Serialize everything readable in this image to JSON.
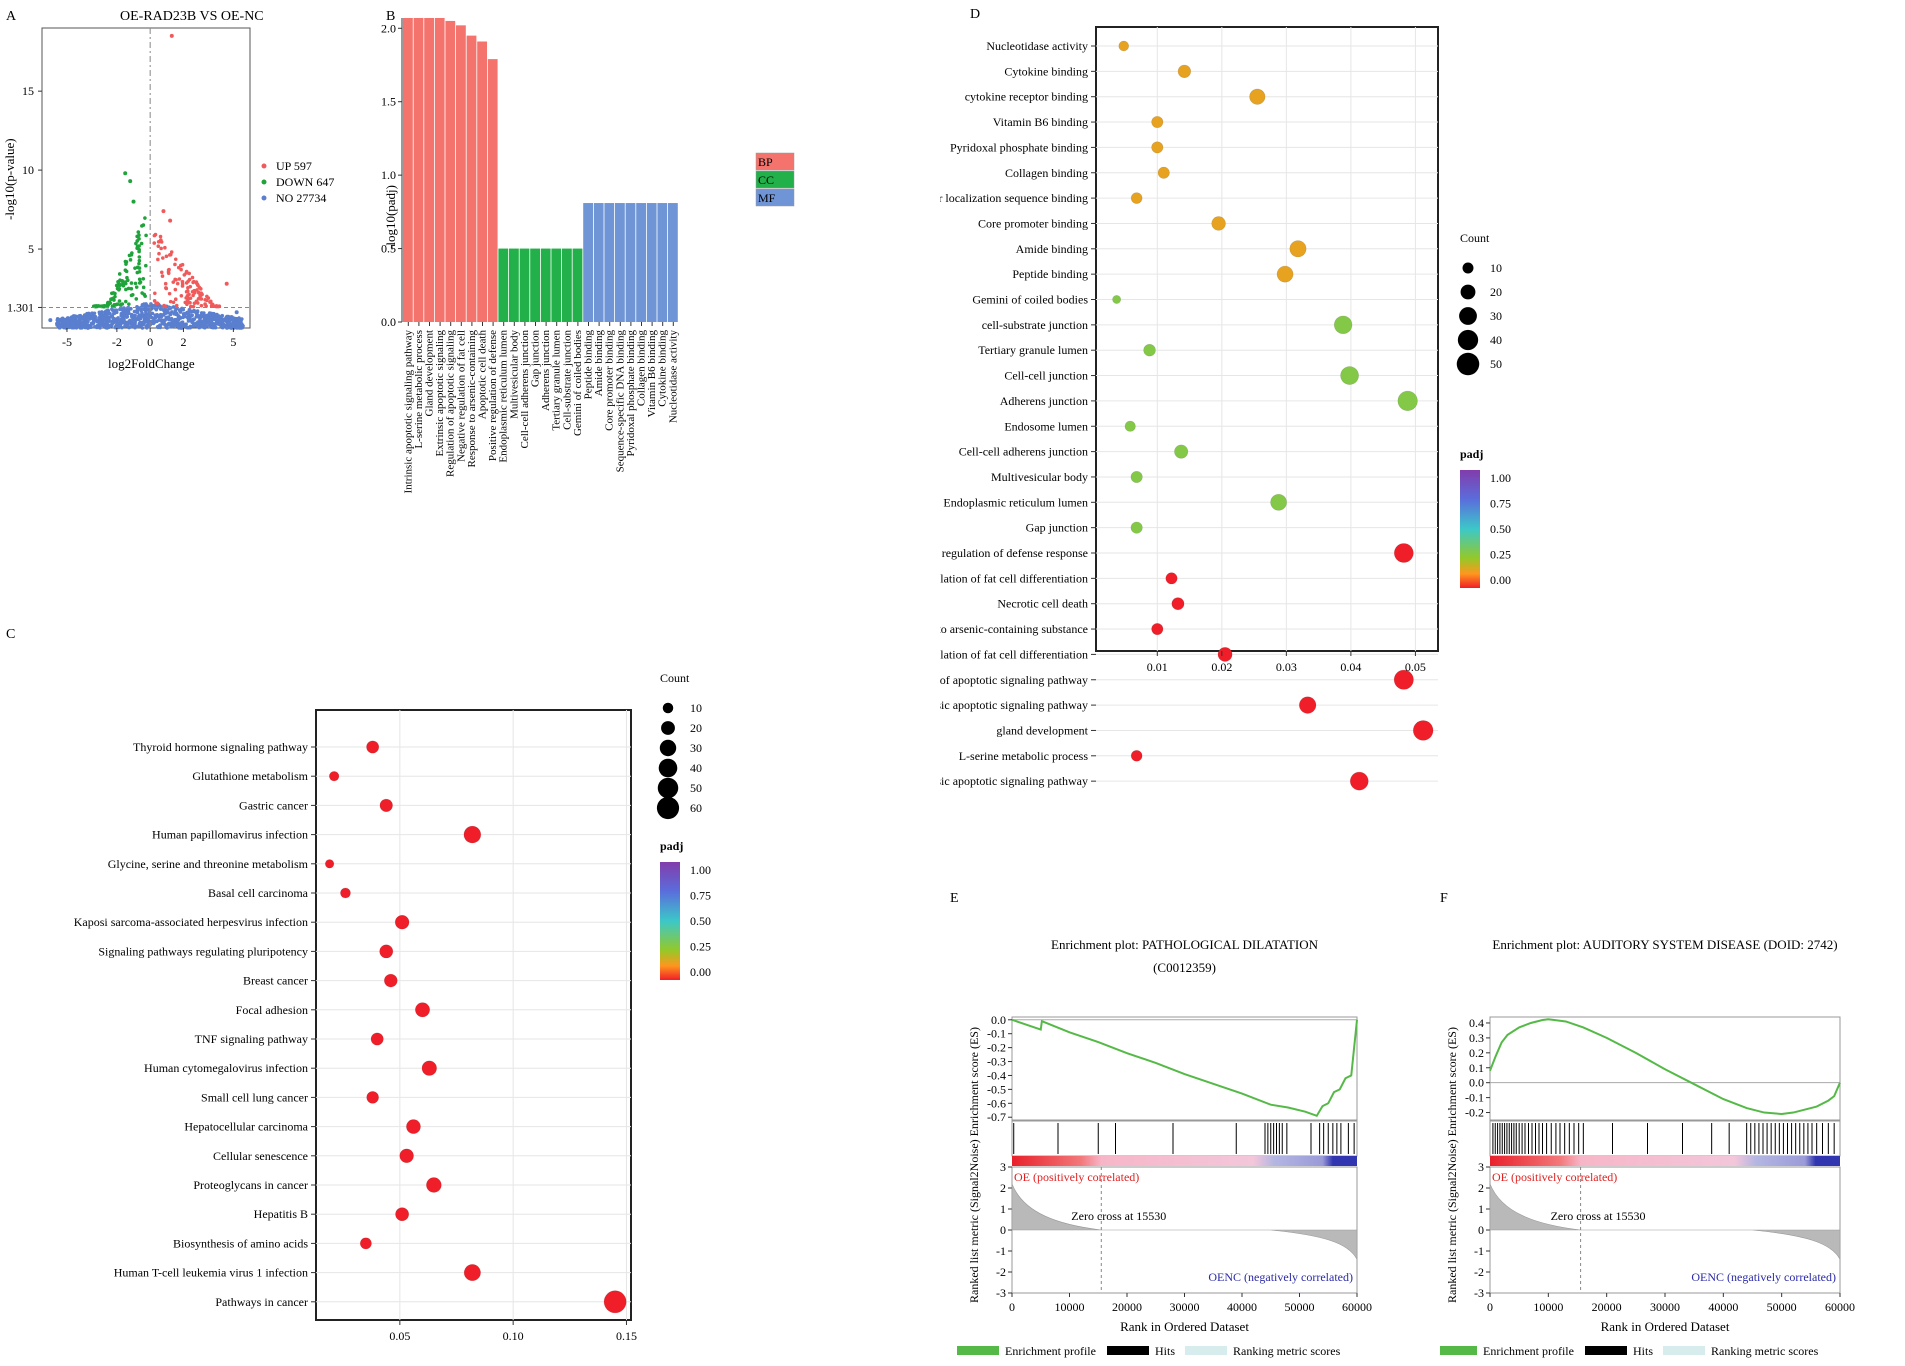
{
  "panels": {
    "A": {
      "letter": "A",
      "chart_data": {
        "type": "scatter",
        "title": "OE-RAD23B VS OE-NC",
        "xlabel": "log2FoldChange",
        "ylabel": "-log10(p-value)",
        "xlim": [
          -6.5,
          6
        ],
        "ylim": [
          0,
          19
        ],
        "xticks": [
          "-5",
          "-2",
          "0",
          "2",
          "5"
        ],
        "xtick_values": [
          -5,
          -2,
          0,
          2,
          5
        ],
        "yticks": [
          "1.301",
          "5",
          "10",
          "15"
        ],
        "ytick_values": [
          1.301,
          5,
          10,
          15
        ],
        "threshold": 1.301,
        "legend": [
          {
            "label": "UP 597",
            "color": "#f05a5a"
          },
          {
            "label": "DOWN 647",
            "color": "#1fa33a"
          },
          {
            "label": "NO 27734",
            "color": "#5b7fcf"
          }
        ],
        "highlight_points": [
          {
            "x": 1.3,
            "y": 18.5,
            "group": "UP"
          },
          {
            "x": -1.5,
            "y": 9.8,
            "group": "DOWN"
          },
          {
            "x": -1.2,
            "y": 9.3,
            "group": "DOWN"
          },
          {
            "x": -1.0,
            "y": 8.0,
            "group": "DOWN"
          },
          {
            "x": 0.8,
            "y": 7.4,
            "group": "UP"
          },
          {
            "x": 1.2,
            "y": 6.8,
            "group": "UP"
          },
          {
            "x": 4.6,
            "y": 2.8,
            "group": "UP"
          },
          {
            "x": -6.0,
            "y": 0.5,
            "group": "NO"
          },
          {
            "x": 5.2,
            "y": 1.0,
            "group": "NO"
          }
        ]
      }
    },
    "B": {
      "letter": "B",
      "chart_data": {
        "type": "bar",
        "ylabel": "-log10(padj)",
        "ylim": [
          0,
          2.07
        ],
        "yticks": [
          "0.0",
          "0.5",
          "1.0",
          "1.5",
          "2.0"
        ],
        "ytick_values": [
          0,
          0.5,
          1.0,
          1.5,
          2.0
        ],
        "categories": [
          "Intrinsic apoptotic signaling pathway",
          "L-serine metabolic process",
          "Gland development",
          "Extrinsic apoptotic signaling",
          "Regulation of apoptotic signaling",
          "Negative regulation of fat cell",
          "Response to arsenic-containing",
          "Apoptotic cell death",
          "Positive regulation of defense",
          "Endoplasmic reticulum lumen",
          "Multivesicular body",
          "Cell-cell adherens junction",
          "Gap junction",
          "Adherens junction",
          "Tertiary granule lumen",
          "Cell-substrate junction",
          "Gemini of coiled bodies",
          "Peptide binding",
          "Amide binding",
          "Core promoter binding",
          "Sequence-specific DNA binding",
          "Pyridoxal phosphate binding",
          "Collagen binding",
          "Vitamin B6 binding",
          "Cytokine binding",
          "Nucleotidase activity"
        ],
        "values": [
          2.07,
          2.07,
          2.07,
          2.07,
          2.05,
          2.02,
          1.95,
          1.91,
          1.79,
          0.5,
          0.5,
          0.5,
          0.5,
          0.5,
          0.5,
          0.5,
          0.5,
          0.81,
          0.81,
          0.81,
          0.81,
          0.81,
          0.81,
          0.81,
          0.81,
          0.81
        ],
        "groups": [
          "BP",
          "BP",
          "BP",
          "BP",
          "BP",
          "BP",
          "BP",
          "BP",
          "BP",
          "CC",
          "CC",
          "CC",
          "CC",
          "CC",
          "CC",
          "CC",
          "CC",
          "MF",
          "MF",
          "MF",
          "MF",
          "MF",
          "MF",
          "MF",
          "MF",
          "MF"
        ],
        "legend": [
          {
            "label": "BP",
            "color": "#f4736d"
          },
          {
            "label": "CC",
            "color": "#22b04a"
          },
          {
            "label": "MF",
            "color": "#6f95d6"
          }
        ]
      }
    },
    "C": {
      "letter": "C",
      "chart_data": {
        "type": "scatter",
        "xlim": [
          0.013,
          0.152
        ],
        "xticks": [
          "0.05",
          "0.10",
          "0.15"
        ],
        "xtick_values": [
          0.05,
          0.1,
          0.15
        ],
        "categories": [
          "Thyroid hormone signaling pathway",
          "Glutathione metabolism",
          "Gastric cancer",
          "Human papillomavirus infection",
          "Glycine, serine and threonine metabolism",
          "Basal cell carcinoma",
          "Kaposi sarcoma-associated herpesvirus infection",
          "Signaling pathways regulating pluripotency",
          "Breast cancer",
          "Focal adhesion",
          "TNF signaling pathway",
          "Human cytomegalovirus infection",
          "Small cell lung cancer",
          "Hepatocellular carcinoma",
          "Cellular senescence",
          "Proteoglycans in cancer",
          "Hepatitis B",
          "Biosynthesis of amino acids",
          "Human T-cell leukemia virus 1 infection",
          "Pathways in cancer"
        ],
        "x": [
          0.038,
          0.021,
          0.044,
          0.082,
          0.019,
          0.026,
          0.051,
          0.044,
          0.046,
          0.06,
          0.04,
          0.063,
          0.038,
          0.056,
          0.053,
          0.065,
          0.051,
          0.035,
          0.082,
          0.145
        ],
        "count": [
          15,
          8,
          16,
          32,
          6,
          9,
          20,
          18,
          17,
          22,
          15,
          23,
          14,
          21,
          20,
          24,
          18,
          12,
          30,
          60
        ],
        "padj": [
          0,
          0,
          0,
          0,
          0,
          0,
          0,
          0,
          0,
          0,
          0,
          0,
          0,
          0,
          0,
          0,
          0,
          0,
          0,
          0
        ],
        "count_legend_title": "Count",
        "count_legend": [
          "10",
          "20",
          "30",
          "40",
          "50",
          "60"
        ],
        "count_legend_values": [
          10,
          20,
          30,
          40,
          50,
          60
        ],
        "padj_legend_title": "padj",
        "padj_legend": [
          "1.00",
          "0.75",
          "0.50",
          "0.25",
          "0.00"
        ]
      }
    },
    "D": {
      "letter": "D",
      "chart_data": {
        "type": "scatter",
        "xlim": [
          0.0005,
          0.0535
        ],
        "xticks": [
          "0.01",
          "0.02",
          "0.03",
          "0.04",
          "0.05"
        ],
        "xtick_values": [
          0.01,
          0.02,
          0.03,
          0.04,
          0.05
        ],
        "categories": [
          "Nucleotidase activity",
          "Cytokine binding",
          "cytokine receptor binding",
          "Vitamin B6 binding",
          "Pyridoxal phosphate binding",
          "Collagen binding",
          "Nuclear localization sequence binding",
          "Core promoter binding",
          "Amide binding",
          "Peptide binding",
          "Gemini of coiled bodies",
          "cell-substrate junction",
          "Tertiary granule lumen",
          "Cell-cell junction",
          "Adherens junction",
          "Endosome lumen",
          "Cell-cell adherens junction",
          "Multivesicular body",
          "Endoplasmic reticulum lumen",
          "Gap junction",
          "Positive regulation of defense response",
          "negative regulation of fat cell differentiation",
          "Necrotic cell death",
          "response to arsenic-containing substance",
          "regulation of fat cell differentiation",
          "regulation of apoptotic signaling pathway",
          "extrinsic apoptotic signaling pathway",
          "gland development",
          "L-serine metabolic process",
          "intrinsic apoptotic signaling pathway"
        ],
        "x": [
          0.0048,
          0.0142,
          0.0255,
          0.01,
          0.01,
          0.011,
          0.0068,
          0.0195,
          0.0318,
          0.0298,
          0.0037,
          0.0388,
          0.0088,
          0.0398,
          0.0488,
          0.0058,
          0.0137,
          0.0068,
          0.0288,
          0.0068,
          0.0482,
          0.0122,
          0.0132,
          0.01,
          0.0205,
          0.0482,
          0.0333,
          0.0512,
          0.0068,
          0.0413
        ],
        "count": [
          8,
          14,
          22,
          11,
          11,
          11,
          10,
          17,
          25,
          24,
          5,
          30,
          12,
          31,
          37,
          9,
          16,
          11,
          24,
          11,
          35,
          11,
          13,
          11,
          18,
          36,
          26,
          38,
          10,
          31
        ],
        "padj": [
          0.15,
          0.15,
          0.15,
          0.15,
          0.15,
          0.15,
          0.15,
          0.15,
          0.15,
          0.15,
          0.3,
          0.3,
          0.3,
          0.3,
          0.3,
          0.3,
          0.3,
          0.3,
          0.3,
          0.3,
          0.0,
          0.0,
          0.0,
          0.0,
          0.0,
          0.0,
          0.0,
          0.0,
          0.0,
          0.0
        ],
        "count_legend_title": "Count",
        "count_legend": [
          "10",
          "20",
          "30",
          "40",
          "50"
        ],
        "count_legend_values": [
          10,
          20,
          30,
          40,
          50
        ],
        "padj_legend_title": "padj",
        "padj_legend": [
          "1.00",
          "0.75",
          "0.50",
          "0.25",
          "0.00"
        ]
      }
    },
    "E": {
      "letter": "E",
      "chart_data": {
        "type": "line",
        "title": "Enrichment plot: PATHOLOGICAL DILATATION",
        "subtitle": "(C0012359)",
        "ylabel": "Ranked list metric (Signal2Noise) Enrichment score (ES)",
        "xlabel": "Rank in Ordered Dataset",
        "es_yticks": [
          "0.0",
          "-0.1",
          "-0.2",
          "-0.3",
          "-0.4",
          "-0.5",
          "-0.6",
          "-0.7"
        ],
        "es_ylim": [
          -0.72,
          0.02
        ],
        "es_x": [
          0,
          5000,
          5200,
          10000,
          15000,
          20000,
          25000,
          30000,
          35000,
          40000,
          45000,
          48000,
          51000,
          53000,
          54000,
          55000,
          56000,
          57000,
          58000,
          59000,
          60000
        ],
        "es_y": [
          0.0,
          -0.07,
          -0.01,
          -0.09,
          -0.16,
          -0.24,
          -0.31,
          -0.39,
          -0.46,
          -0.53,
          -0.61,
          -0.63,
          -0.66,
          -0.69,
          -0.62,
          -0.6,
          -0.52,
          -0.5,
          -0.42,
          -0.4,
          0.0
        ],
        "hits": [
          300,
          8000,
          15000,
          18000,
          28000,
          39000,
          44000,
          44500,
          45000,
          45500,
          46000,
          46500,
          47000,
          47800,
          52000,
          53500,
          54200,
          55000,
          55800,
          56500,
          57200,
          58500,
          59500
        ],
        "metric_yticks": [
          "3",
          "2",
          "1",
          "0",
          "-1",
          "-2",
          "-3"
        ],
        "xticks": [
          "0",
          "10000",
          "20000",
          "30000",
          "40000",
          "50000",
          "60000"
        ],
        "xtick_values": [
          0,
          10000,
          20000,
          30000,
          40000,
          50000,
          60000
        ],
        "pos_label": "OE (positively correlated)",
        "zero_cross": "Zero cross at 15530",
        "neg_label": "OENC (negatively correlated)",
        "legend": [
          {
            "label": "Enrichment profile",
            "color": "#55b947"
          },
          {
            "label": "Hits",
            "color": "#000000"
          },
          {
            "label": "Ranking metric scores",
            "color": "#d7ecec"
          }
        ]
      }
    },
    "F": {
      "letter": "F",
      "chart_data": {
        "type": "line",
        "title": "Enrichment plot: AUDITORY SYSTEM DISEASE (DOID: 2742)",
        "ylabel": "Ranked list metric (Signal2Noise) Enrichment score (ES)",
        "xlabel": "Rank in Ordered Dataset",
        "es_yticks": [
          "0.4",
          "0.3",
          "0.2",
          "0.1",
          "0.0",
          "-0.1",
          "-0.2"
        ],
        "es_ylim": [
          -0.25,
          0.44
        ],
        "es_x": [
          0,
          1000,
          2000,
          3000,
          5000,
          7000,
          9000,
          10000,
          11000,
          13000,
          16000,
          20000,
          25000,
          30000,
          35000,
          40000,
          44000,
          47000,
          50000,
          52000,
          54000,
          56000,
          58000,
          59000,
          60000
        ],
        "es_y": [
          0.08,
          0.18,
          0.27,
          0.32,
          0.37,
          0.4,
          0.42,
          0.425,
          0.42,
          0.41,
          0.37,
          0.3,
          0.2,
          0.09,
          -0.01,
          -0.11,
          -0.17,
          -0.2,
          -0.21,
          -0.2,
          -0.18,
          -0.16,
          -0.12,
          -0.09,
          0.0
        ],
        "hits": [
          500,
          900,
          1300,
          1700,
          2100,
          2500,
          2900,
          3300,
          3700,
          4100,
          4500,
          5000,
          5500,
          6000,
          6600,
          7200,
          7800,
          8400,
          9000,
          9700,
          10500,
          11300,
          12000,
          12800,
          13600,
          14400,
          15200,
          16000,
          21000,
          27000,
          33000,
          38000,
          41000,
          44000,
          44700,
          45400,
          46100,
          46800,
          47500,
          48200,
          48900,
          49600,
          50300,
          51000,
          51700,
          52400,
          53100,
          53800,
          54500,
          55200,
          56000,
          57000,
          58000,
          59000
        ],
        "metric_yticks": [
          "3",
          "2",
          "1",
          "0",
          "-1",
          "-2",
          "-3"
        ],
        "xticks": [
          "0",
          "10000",
          "20000",
          "30000",
          "40000",
          "50000",
          "60000"
        ],
        "xtick_values": [
          0,
          10000,
          20000,
          30000,
          40000,
          50000,
          60000
        ],
        "pos_label": "OE (positively correlated)",
        "zero_cross": "Zero cross at 15530",
        "neg_label": "OENC (negatively correlated)",
        "legend": [
          {
            "label": "Enrichment profile",
            "color": "#55b947"
          },
          {
            "label": "Hits",
            "color": "#000000"
          },
          {
            "label": "Ranking metric scores",
            "color": "#d7ecec"
          }
        ]
      }
    }
  }
}
